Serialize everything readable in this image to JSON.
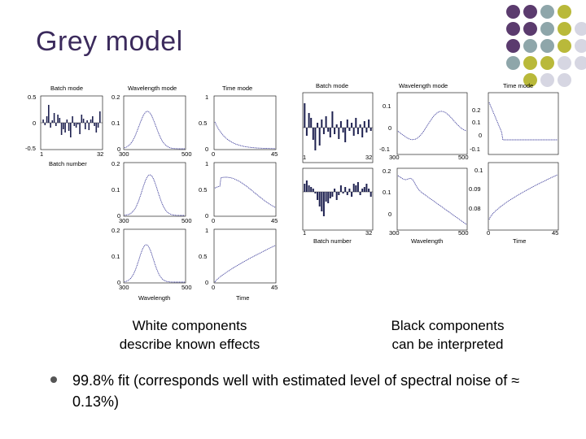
{
  "slide": {
    "title": "Grey model",
    "caption_left_1": "White components",
    "caption_left_2": "describe known effects",
    "caption_right_1": "Black components",
    "caption_right_2": "can be interpreted",
    "bullet": "99.8% fit (corresponds well with estimated level of spectral noise of ≈ 0.13%)"
  },
  "palette": {
    "purple": "#5b3b6e",
    "teal": "#8ea6aa",
    "olive": "#b9b93a",
    "grey": "#d6d6e2",
    "title_color": "#3b2a5c",
    "line_blue": "#3b3b99",
    "bar_navy": "#1e2150"
  },
  "left_figure": {
    "row1_titles": [
      "Batch mode",
      "Wavelength mode",
      "Time mode"
    ],
    "batch_yticks": [
      "0.5",
      "0",
      "-0.5"
    ],
    "batch_xticks": [
      "1",
      "32"
    ],
    "batch_xlabel": "Batch number",
    "wl_yticks": [
      "0.2",
      "0.1",
      "0"
    ],
    "wl_xticks": [
      "300",
      "500"
    ],
    "wl_xlabel": "Wavelength",
    "time_yticks_row1": [
      "1",
      "0.5",
      "0"
    ],
    "time_yticks_row2": [
      "1",
      "0.5",
      "0"
    ],
    "time_yticks_row3": [
      "1",
      "0.5",
      "0"
    ],
    "time_xticks": [
      "0",
      "45"
    ],
    "time_xlabel": "Time"
  },
  "right_figure": {
    "titles": [
      "Batch mode",
      "Wavelength mode",
      "Time mode"
    ],
    "batch_xticks": [
      "1",
      "32"
    ],
    "batch_xlabel": "Batch number",
    "wl1_yticks": [
      "0.1",
      "0",
      "-0.1"
    ],
    "wl2_yticks": [
      "0.2",
      "0.1",
      "0"
    ],
    "wl_xticks": [
      "300",
      "500"
    ],
    "wl_xlabel": "Wavelength",
    "time1_yticks": [
      "0.2",
      "0.1",
      "0",
      "-0.1"
    ],
    "time2_yticks": [
      "0.1",
      "0.09",
      "0.08"
    ],
    "time_xticks": [
      "0",
      "45"
    ],
    "time_xlabel": "Time"
  }
}
